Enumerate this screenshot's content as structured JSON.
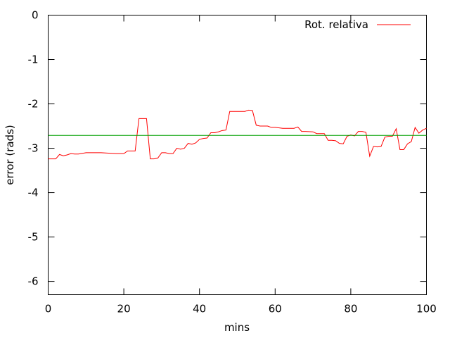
{
  "chart_data": {
    "type": "line",
    "xlabel": "mins",
    "ylabel": "error (rads)",
    "xlim": [
      0,
      100
    ],
    "ylim": [
      -6.3,
      0
    ],
    "x_ticks": [
      "0",
      "20",
      "40",
      "60",
      "80",
      "100"
    ],
    "y_ticks": [
      "0",
      "-1",
      "-2",
      "-3",
      "-4",
      "-5",
      "-6"
    ],
    "x_tick_values": [
      0,
      20,
      40,
      60,
      80,
      100
    ],
    "y_tick_values": [
      0,
      -1,
      -2,
      -3,
      -4,
      -5,
      -6
    ],
    "grid": false,
    "legend_position": "top-right",
    "series": [
      {
        "name": "Rot. relativa",
        "color": "#ff0000",
        "x": [
          0,
          2,
          3,
          4,
          5,
          6,
          7,
          8,
          10,
          12,
          14,
          16,
          18,
          20,
          21,
          22,
          23,
          24,
          25,
          26,
          27,
          28,
          29,
          30,
          31,
          32,
          33,
          34,
          35,
          36,
          37,
          38,
          39,
          40,
          41,
          42,
          43,
          44,
          45,
          46,
          47,
          48,
          49,
          50,
          51,
          52,
          53,
          54,
          55,
          56,
          58,
          59,
          60,
          62,
          64,
          65,
          66,
          67,
          68,
          70,
          71,
          72,
          73,
          74,
          75,
          76,
          77,
          78,
          79,
          80,
          81,
          82,
          83,
          84,
          85,
          86,
          87,
          88,
          89,
          90,
          91,
          92,
          93,
          94,
          95,
          96,
          97,
          98,
          99,
          100
        ],
        "y": [
          -3.24,
          -3.24,
          -3.14,
          -3.17,
          -3.15,
          -3.12,
          -3.13,
          -3.13,
          -3.1,
          -3.1,
          -3.1,
          -3.11,
          -3.12,
          -3.12,
          -3.06,
          -3.06,
          -3.06,
          -2.33,
          -2.33,
          -2.33,
          -3.24,
          -3.24,
          -3.22,
          -3.1,
          -3.1,
          -3.12,
          -3.12,
          -3.0,
          -3.02,
          -3.0,
          -2.89,
          -2.91,
          -2.88,
          -2.8,
          -2.78,
          -2.77,
          -2.65,
          -2.65,
          -2.63,
          -2.6,
          -2.59,
          -2.17,
          -2.17,
          -2.17,
          -2.17,
          -2.17,
          -2.14,
          -2.15,
          -2.48,
          -2.5,
          -2.5,
          -2.53,
          -2.53,
          -2.55,
          -2.55,
          -2.55,
          -2.52,
          -2.62,
          -2.62,
          -2.63,
          -2.67,
          -2.67,
          -2.67,
          -2.82,
          -2.82,
          -2.83,
          -2.89,
          -2.9,
          -2.73,
          -2.7,
          -2.72,
          -2.62,
          -2.62,
          -2.64,
          -3.18,
          -2.96,
          -2.97,
          -2.96,
          -2.75,
          -2.73,
          -2.73,
          -2.56,
          -3.03,
          -3.03,
          -2.9,
          -2.85,
          -2.53,
          -2.66,
          -2.59,
          -2.55
        ]
      },
      {
        "color": "#00a000",
        "x": [
          0,
          100
        ],
        "y": [
          -2.71,
          -2.71
        ]
      }
    ]
  }
}
